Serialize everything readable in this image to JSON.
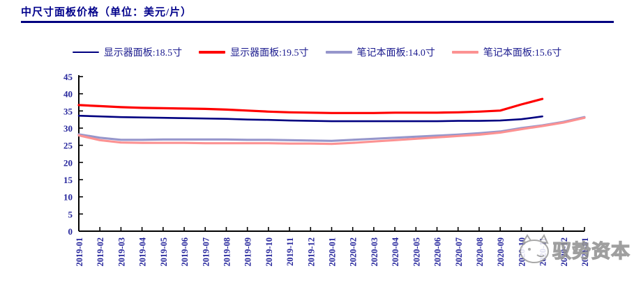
{
  "header": {
    "title": "中尺寸面板价格（单位：美元/片）",
    "accent_color": "#00008B"
  },
  "watermark": {
    "text": "驭势资本"
  },
  "chart_data": {
    "type": "line",
    "title": "中尺寸面板价格（单位：美元/片）",
    "y_unit": "美元/片",
    "ylim": [
      0,
      45
    ],
    "ytick_step": 5,
    "grid": false,
    "legend_position": "top-center",
    "axis_color": "#000000",
    "axis_text_color": "#26269C",
    "x": [
      "2019-01",
      "2019-02",
      "2019-03",
      "2019-04",
      "2019-05",
      "2019-06",
      "2019-07",
      "2019-08",
      "2019-09",
      "2019-10",
      "2019-11",
      "2019-12",
      "2020-01",
      "2020-02",
      "2020-03",
      "2020-04",
      "2020-05",
      "2020-06",
      "2020-07",
      "2020-08",
      "2020-09",
      "2020-10",
      "2020-11",
      "2020-12",
      "2021-01"
    ],
    "series": [
      {
        "name": "显示器面板:18.5寸",
        "color": "#000080",
        "width": 2.6,
        "values": [
          33.6,
          33.4,
          33.2,
          33.1,
          33.0,
          32.9,
          32.8,
          32.7,
          32.5,
          32.4,
          32.2,
          32.1,
          32.0,
          32.0,
          32.0,
          32.0,
          32.0,
          32.0,
          32.1,
          32.1,
          32.2,
          32.6,
          33.4,
          null,
          null
        ]
      },
      {
        "name": "显示器面板:19.5寸",
        "color": "#FF0000",
        "width": 3.2,
        "values": [
          36.7,
          36.4,
          36.1,
          35.9,
          35.8,
          35.7,
          35.6,
          35.4,
          35.1,
          34.8,
          34.6,
          34.5,
          34.4,
          34.4,
          34.4,
          34.5,
          34.5,
          34.5,
          34.6,
          34.8,
          35.1,
          36.9,
          38.5,
          null,
          null
        ]
      },
      {
        "name": "笔记本面板:14.0寸",
        "color": "#9696CB",
        "width": 3.2,
        "values": [
          28.2,
          27.2,
          26.6,
          26.6,
          26.7,
          26.7,
          26.7,
          26.7,
          26.6,
          26.6,
          26.5,
          26.4,
          26.3,
          26.6,
          26.9,
          27.2,
          27.5,
          27.8,
          28.1,
          28.5,
          29.0,
          30.0,
          30.8,
          31.8,
          33.2
        ]
      },
      {
        "name": "笔记本面板:15.6寸",
        "color": "#FC9292",
        "width": 3.2,
        "values": [
          27.9,
          26.5,
          25.8,
          25.7,
          25.7,
          25.7,
          25.6,
          25.6,
          25.6,
          25.6,
          25.5,
          25.5,
          25.4,
          25.7,
          26.1,
          26.5,
          26.9,
          27.3,
          27.7,
          28.1,
          28.7,
          29.7,
          30.6,
          31.6,
          33.0
        ]
      }
    ]
  }
}
